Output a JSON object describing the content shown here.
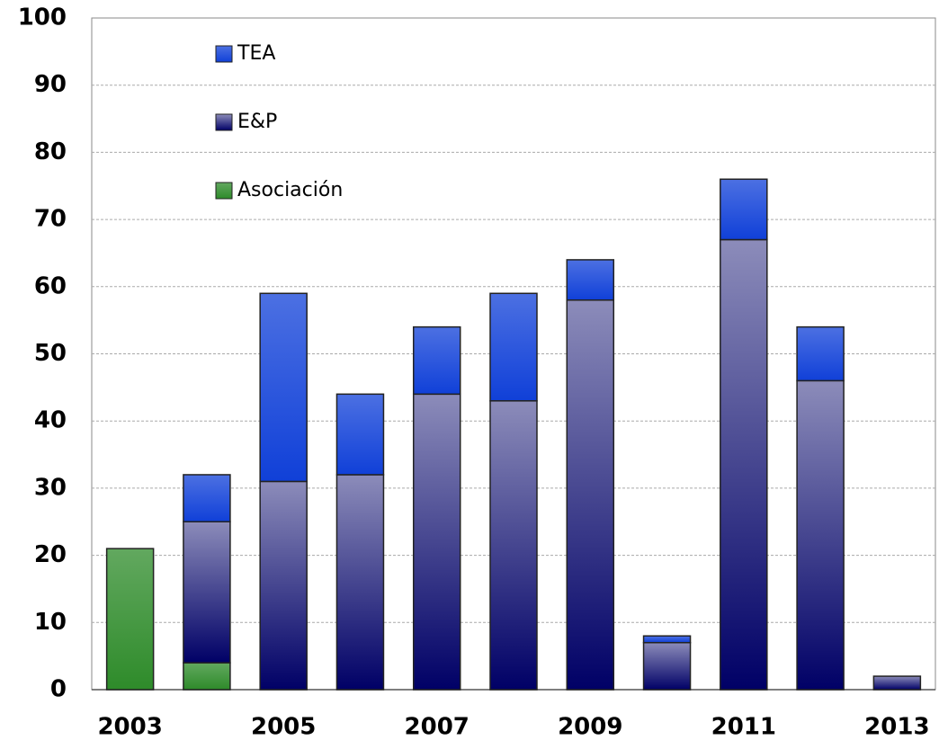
{
  "chart_data": {
    "type": "stacked_bar",
    "categories": [
      "2003",
      null,
      "2005",
      null,
      "2007",
      null,
      "2009",
      null,
      "2011",
      null,
      "2013"
    ],
    "series": [
      {
        "name": "Asociación",
        "color": "#2e8b2a",
        "values": [
          21,
          4,
          0,
          0,
          0,
          0,
          0,
          0,
          0,
          0,
          0
        ]
      },
      {
        "name": "E&P",
        "color": "#000066",
        "values": [
          0,
          21,
          31,
          32,
          44,
          43,
          58,
          7,
          67,
          46,
          2
        ]
      },
      {
        "name": "TEA",
        "color": "#1040d8",
        "values": [
          0,
          7,
          28,
          12,
          10,
          16,
          6,
          1,
          9,
          8,
          0
        ]
      }
    ],
    "ylim": [
      0,
      100
    ],
    "yticks": [
      0,
      10,
      20,
      30,
      40,
      50,
      60,
      70,
      80,
      90,
      100
    ],
    "grid": true
  }
}
